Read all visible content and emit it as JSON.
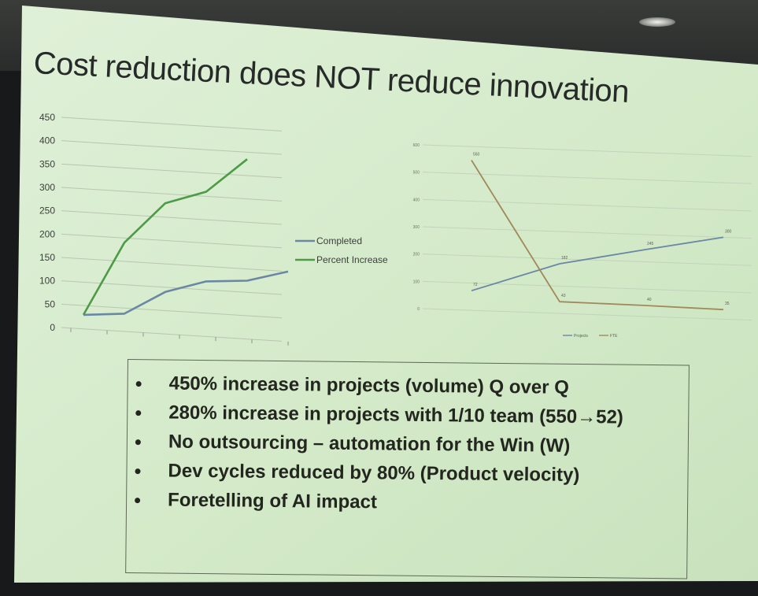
{
  "slide": {
    "title": "Cost reduction does NOT reduce innovation",
    "bullets": [
      "450% increase in projects (volume) Q over Q",
      "280% increase in projects with 1/10 team (550→52)",
      "No outsourcing – automation for the Win (W)",
      "Dev cycles reduced by 80% (Product velocity)",
      "Foretelling of AI impact"
    ]
  },
  "colors": {
    "completed": "#6a88a4",
    "percent_increase": "#4d9a47",
    "projects": "#6a88a4",
    "fte": "#a08a5c",
    "slide_bg": "#d6ebcc"
  },
  "chart_data": [
    {
      "type": "line",
      "title": "",
      "yticks": [
        "450",
        "400",
        "350",
        "300",
        "250",
        "200",
        "150",
        "100",
        "50",
        "0"
      ],
      "ylim": [
        0,
        450
      ],
      "x": [
        1,
        2,
        3,
        4,
        5,
        6
      ],
      "series": [
        {
          "name": "Completed",
          "values": [
            30,
            38,
            90,
            118,
            125,
            150
          ]
        },
        {
          "name": "Percent Increase",
          "values": [
            30,
            190,
            280,
            310,
            385,
            null
          ]
        }
      ],
      "legend_position": "right",
      "grid": true
    },
    {
      "type": "line",
      "title": "",
      "series": [
        {
          "name": "Projects",
          "values": [
            72,
            182,
            245,
            300
          ]
        },
        {
          "name": "FTE",
          "values": [
            550,
            43,
            40,
            35
          ]
        }
      ],
      "data_labels": {
        "projects": [
          "72",
          "182",
          "245",
          "300"
        ],
        "fte": [
          "550",
          "43",
          "40",
          "35"
        ]
      },
      "legend_position": "bottom",
      "grid": true
    }
  ]
}
